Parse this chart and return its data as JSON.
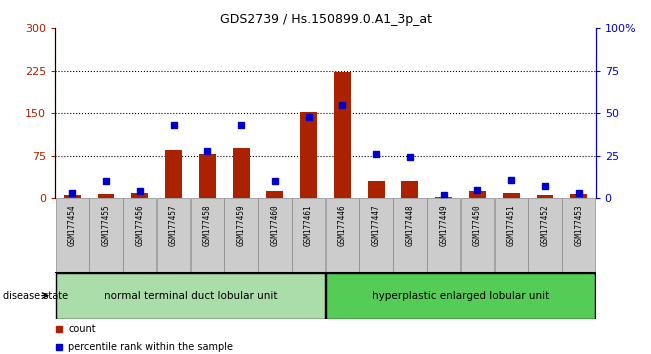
{
  "title": "GDS2739 / Hs.150899.0.A1_3p_at",
  "samples": [
    "GSM177454",
    "GSM177455",
    "GSM177456",
    "GSM177457",
    "GSM177458",
    "GSM177459",
    "GSM177460",
    "GSM177461",
    "GSM177446",
    "GSM177447",
    "GSM177448",
    "GSM177449",
    "GSM177450",
    "GSM177451",
    "GSM177452",
    "GSM177453"
  ],
  "counts": [
    5,
    8,
    10,
    85,
    78,
    88,
    12,
    152,
    222,
    30,
    30,
    3,
    12,
    10,
    5,
    8
  ],
  "percentiles": [
    3,
    10,
    4,
    43,
    28,
    43,
    10,
    48,
    55,
    26,
    24,
    2,
    5,
    11,
    7,
    3
  ],
  "group1_label": "normal terminal duct lobular unit",
  "group2_label": "hyperplastic enlarged lobular unit",
  "group1_count": 8,
  "group2_count": 8,
  "disease_state_label": "disease state",
  "count_label": "count",
  "percentile_label": "percentile rank within the sample",
  "ylim_left": [
    0,
    300
  ],
  "ylim_right": [
    0,
    100
  ],
  "yticks_left": [
    0,
    75,
    150,
    225,
    300
  ],
  "yticks_right": [
    0,
    25,
    50,
    75,
    100
  ],
  "bar_color": "#AA2200",
  "dot_color": "#0000CC",
  "group1_bg": "#AADDAA",
  "group2_bg": "#55CC55",
  "xticklabel_bg": "#CCCCCC",
  "grid_color": "black",
  "right_axis_color": "#0000CC",
  "left_axis_color": "#AA2200",
  "bar_width": 0.5
}
